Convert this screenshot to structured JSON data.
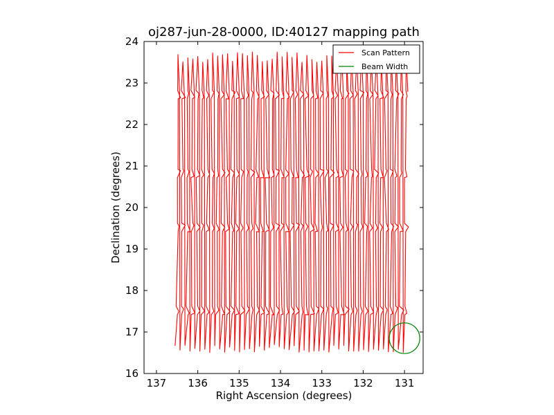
{
  "chart_data": {
    "type": "line",
    "title": "oj287-jun-28-0000, ID:40127 mapping path",
    "xlabel": "Right Ascension (degrees)",
    "ylabel": "Declination (degrees)",
    "xlim": [
      137.3,
      130.55
    ],
    "ylim": [
      16,
      24
    ],
    "x_ticks": [
      137,
      136,
      135,
      134,
      133,
      132,
      131
    ],
    "y_ticks": [
      16,
      17,
      18,
      19,
      20,
      21,
      22,
      23,
      24
    ],
    "grid": false,
    "legend_position": "top-right",
    "series": [
      {
        "name": "Scan Pattern",
        "color": "#ff0000",
        "style": "line",
        "ra_start": 136.5,
        "ra_end": 131.0,
        "stripe_step": 0.12,
        "dec_min": 16.5,
        "dec_max": 23.75,
        "dec_levels": [
          17.5,
          19.5,
          20.8,
          22.7
        ]
      },
      {
        "name": "Beam Width",
        "color": "#008000",
        "style": "circle",
        "center_ra": 131.0,
        "center_dec": 16.85,
        "radius_deg": 0.37
      }
    ]
  }
}
